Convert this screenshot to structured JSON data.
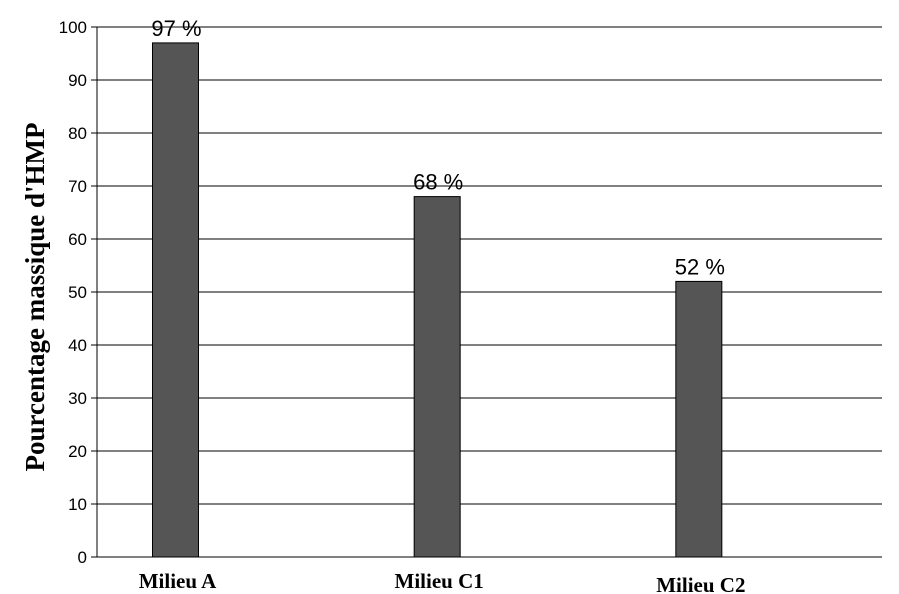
{
  "chart_data": {
    "type": "bar",
    "title": "",
    "xlabel": "",
    "ylabel": "Pourcentage massique d'HMP",
    "categories": [
      "Milieu A",
      "Milieu C1",
      "Milieu C2"
    ],
    "values": [
      97,
      68,
      52
    ],
    "data_labels": [
      "97 %",
      "68 %",
      "52 %"
    ],
    "ylim": [
      0,
      100
    ],
    "yticks": [
      0,
      10,
      20,
      30,
      40,
      50,
      60,
      70,
      80,
      90,
      100
    ],
    "grid": true,
    "legend": "none",
    "bar_color": "#555555",
    "bar_stroke": "#000000"
  }
}
